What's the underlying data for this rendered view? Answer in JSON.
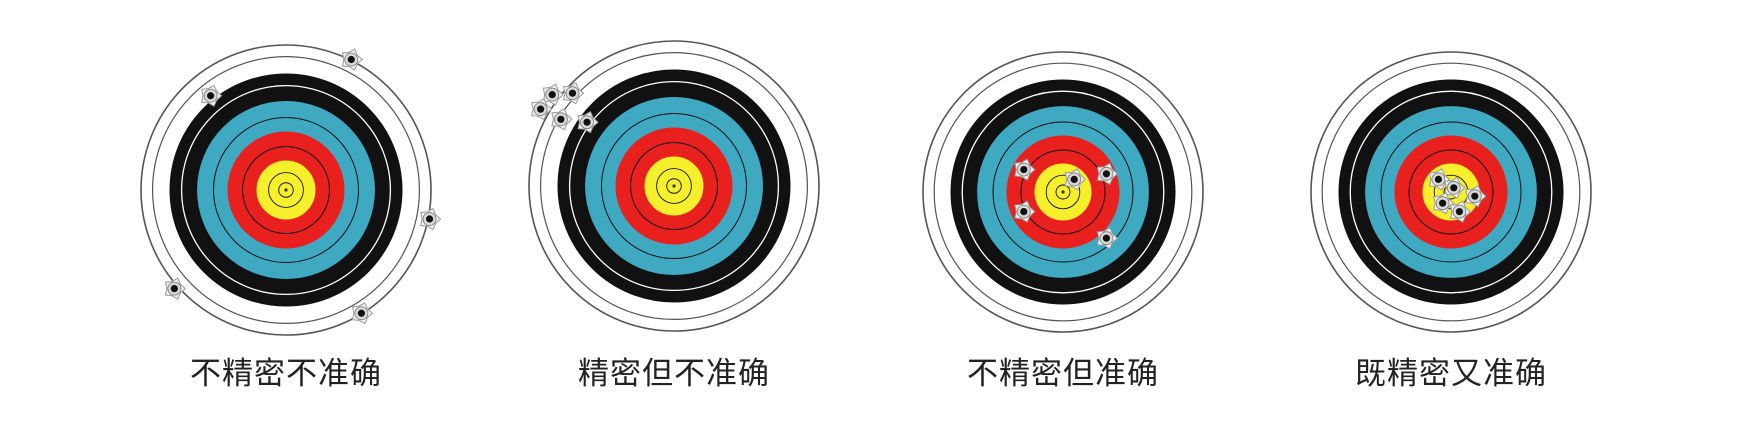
{
  "targets": [
    {
      "caption": "不精密不准确",
      "hits": [
        {
          "dx": 0.45,
          "dy": -0.9
        },
        {
          "dx": -0.52,
          "dy": -0.65
        },
        {
          "dx": 0.99,
          "dy": 0.2
        },
        {
          "dx": -0.77,
          "dy": 0.68
        },
        {
          "dx": 0.52,
          "dy": 0.85
        }
      ]
    },
    {
      "caption": "精密但不准确",
      "hits": [
        {
          "dx": -0.84,
          "dy": -0.63
        },
        {
          "dx": -0.7,
          "dy": -0.64
        },
        {
          "dx": -0.92,
          "dy": -0.53
        },
        {
          "dx": -0.78,
          "dy": -0.46
        },
        {
          "dx": -0.6,
          "dy": -0.44
        }
      ]
    },
    {
      "caption": "不精密但准确",
      "hits": [
        {
          "dx": -0.28,
          "dy": -0.16
        },
        {
          "dx": 0.08,
          "dy": -0.09
        },
        {
          "dx": 0.31,
          "dy": -0.13
        },
        {
          "dx": -0.28,
          "dy": 0.14
        },
        {
          "dx": 0.31,
          "dy": 0.33
        }
      ]
    },
    {
      "caption": "既精密又准确",
      "hits": [
        {
          "dx": -0.09,
          "dy": -0.09
        },
        {
          "dx": 0.02,
          "dy": -0.03
        },
        {
          "dx": 0.17,
          "dy": 0.03
        },
        {
          "dx": -0.06,
          "dy": 0.08
        },
        {
          "dx": 0.06,
          "dy": 0.14
        }
      ]
    }
  ],
  "ring_colors": {
    "yellow": "#f6ef2c",
    "red": "#e8201e",
    "blue": "#3fa9c2",
    "black": "#111111",
    "white": "#ffffff",
    "line": "#555555"
  }
}
